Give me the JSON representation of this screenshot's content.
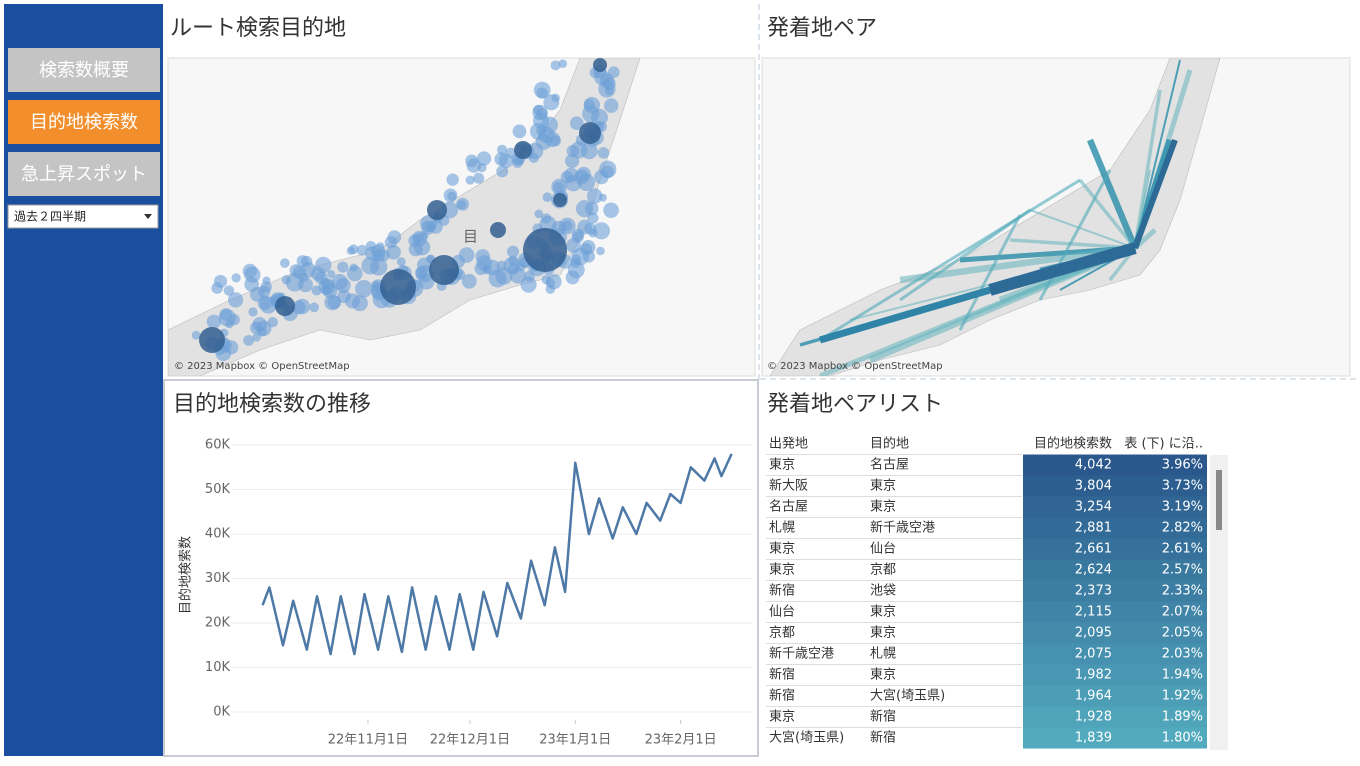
{
  "sidebar": {
    "buttons": [
      "検索数概要",
      "目的地検索数",
      "急上昇スポット"
    ],
    "dropdown": "過去２四半期"
  },
  "map_routes": {
    "title": "ルート検索目的地",
    "label": "目",
    "attribution": "© 2023 Mapbox © OpenStreetMap"
  },
  "map_pairs": {
    "title": "発着地ペア",
    "attribution": "© 2023 Mapbox © OpenStreetMap"
  },
  "chart_data": {
    "type": "line",
    "title": "目的地検索数の推移",
    "y_label": "目的地検索数",
    "color": "#4e79a7",
    "x": [
      "2022-10-01",
      "2022-10-03",
      "2022-10-07",
      "2022-10-10",
      "2022-10-14",
      "2022-10-17",
      "2022-10-21",
      "2022-10-24",
      "2022-10-28",
      "2022-10-31",
      "2022-11-04",
      "2022-11-07",
      "2022-11-11",
      "2022-11-14",
      "2022-11-18",
      "2022-11-21",
      "2022-11-25",
      "2022-11-28",
      "2022-12-02",
      "2022-12-05",
      "2022-12-09",
      "2022-12-12",
      "2022-12-16",
      "2022-12-19",
      "2022-12-23",
      "2022-12-26",
      "2022-12-29",
      "2023-01-01",
      "2023-01-05",
      "2023-01-08",
      "2023-01-12",
      "2023-01-15",
      "2023-01-19",
      "2023-01-22",
      "2023-01-26",
      "2023-01-29",
      "2023-02-01",
      "2023-02-04",
      "2023-02-08",
      "2023-02-11",
      "2023-02-13",
      "2023-02-16"
    ],
    "values": [
      24000,
      28000,
      15000,
      25000,
      14000,
      26000,
      13000,
      26000,
      13000,
      26500,
      14000,
      26000,
      13500,
      28000,
      14000,
      26000,
      14000,
      26500,
      14000,
      27000,
      17000,
      29000,
      21000,
      34000,
      24000,
      37000,
      27000,
      56000,
      40000,
      48000,
      39000,
      46000,
      40000,
      47000,
      43000,
      49000,
      47000,
      55000,
      52000,
      57000,
      53000,
      58000
    ],
    "xlim": [
      "2022-09-22",
      "2023-02-22"
    ],
    "xticks": [
      {
        "value": "2022-11-01",
        "label": "22年11月1日"
      },
      {
        "value": "2022-12-01",
        "label": "22年12月1日"
      },
      {
        "value": "2023-01-01",
        "label": "23年1月1日"
      },
      {
        "value": "2023-02-01",
        "label": "23年2月1日"
      }
    ],
    "ylim": [
      0,
      60000
    ],
    "yticks": [
      {
        "value": 0,
        "label": "0K"
      },
      {
        "value": 10000,
        "label": "10K"
      },
      {
        "value": 20000,
        "label": "20K"
      },
      {
        "value": 30000,
        "label": "30K"
      },
      {
        "value": 40000,
        "label": "40K"
      },
      {
        "value": 50000,
        "label": "50K"
      },
      {
        "value": 60000,
        "label": "60K"
      }
    ],
    "grid": true
  },
  "table": {
    "title": "発着地ペアリスト",
    "columns": [
      "出発地",
      "目的地",
      "目的地検索数",
      "表 (下) に沿.."
    ],
    "rows": [
      [
        "東京",
        "名古屋",
        "4,042",
        "3.96%"
      ],
      [
        "新大阪",
        "東京",
        "3,804",
        "3.73%"
      ],
      [
        "名古屋",
        "東京",
        "3,254",
        "3.19%"
      ],
      [
        "札幌",
        "新千歳空港",
        "2,881",
        "2.82%"
      ],
      [
        "東京",
        "仙台",
        "2,661",
        "2.61%"
      ],
      [
        "東京",
        "京都",
        "2,624",
        "2.57%"
      ],
      [
        "新宿",
        "池袋",
        "2,373",
        "2.33%"
      ],
      [
        "仙台",
        "東京",
        "2,115",
        "2.07%"
      ],
      [
        "京都",
        "東京",
        "2,095",
        "2.05%"
      ],
      [
        "新千歳空港",
        "札幌",
        "2,075",
        "2.03%"
      ],
      [
        "新宿",
        "東京",
        "1,982",
        "1.94%"
      ],
      [
        "新宿",
        "大宮(埼玉県)",
        "1,964",
        "1.92%"
      ],
      [
        "東京",
        "新宿",
        "1,928",
        "1.89%"
      ],
      [
        "大宮(埼玉県)",
        "新宿",
        "1,839",
        "1.80%"
      ]
    ]
  }
}
